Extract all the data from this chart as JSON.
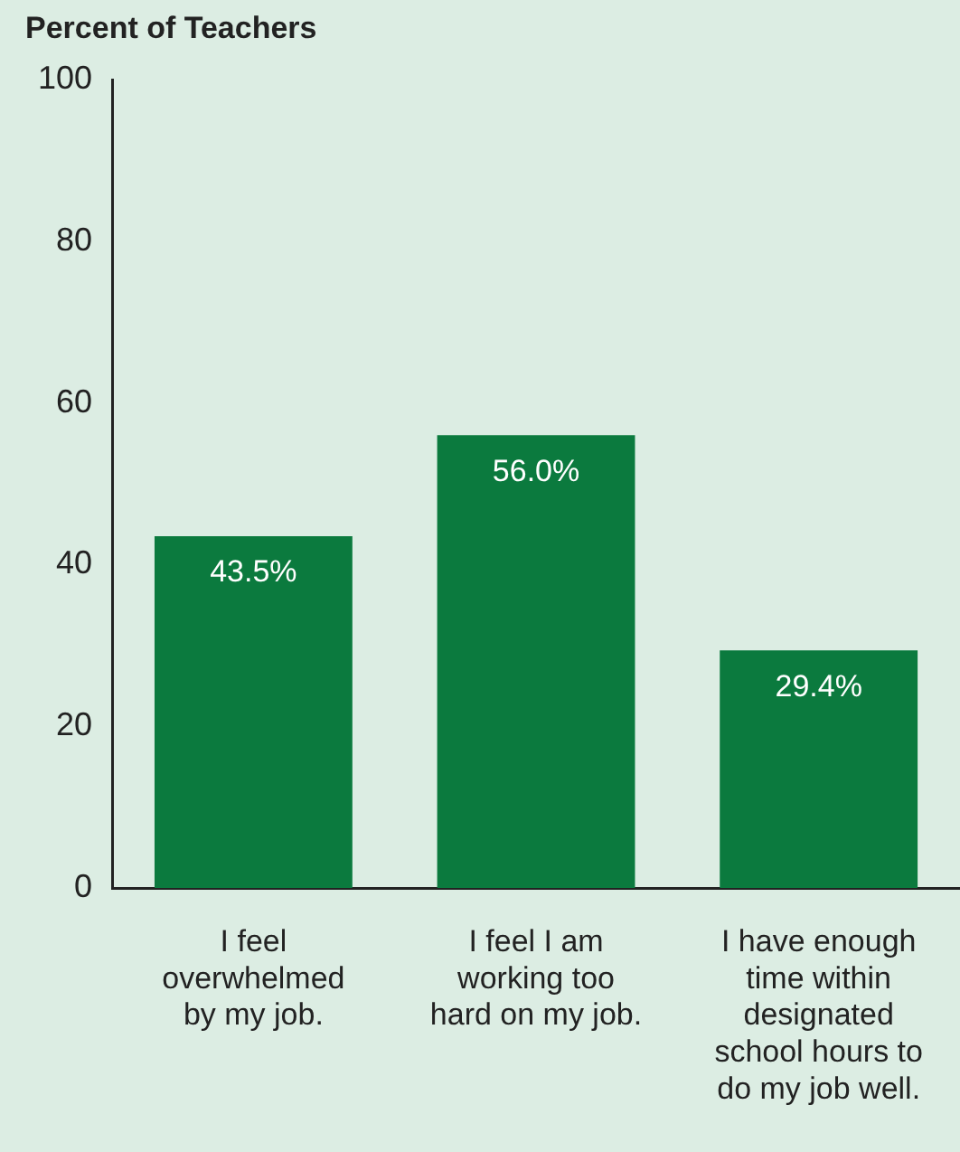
{
  "chart_data": {
    "type": "bar",
    "ylabel": "Percent of Teachers",
    "categories": [
      "I feel overwhelmed by my job.",
      "I feel I am working too hard on my job.",
      "I have enough time within designated school hours to do my job well."
    ],
    "values": [
      43.5,
      56.0,
      29.4
    ],
    "color": "#0b7a3e",
    "value_labels": [
      "43.5%",
      "56.0%",
      "29.4%"
    ],
    "ylim": [
      0,
      100
    ],
    "yticks": [
      0,
      20,
      40,
      60,
      80,
      100
    ],
    "grid": false,
    "legend": false
  }
}
